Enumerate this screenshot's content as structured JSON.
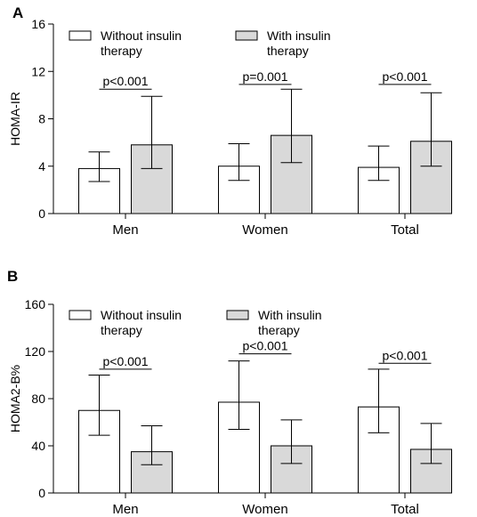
{
  "chart_data": [
    {
      "panel_label": "A",
      "type": "bar",
      "ylabel": "HOMA-IR",
      "ylim": [
        0,
        16
      ],
      "yticks": [
        0,
        4,
        8,
        12,
        16
      ],
      "categories": [
        "Men",
        "Women",
        "Total"
      ],
      "series": [
        {
          "name": "Without insulin therapy",
          "color": "#ffffff",
          "values": [
            3.8,
            4.0,
            3.9
          ],
          "err_low": [
            2.7,
            2.8,
            2.8
          ],
          "err_high": [
            5.2,
            5.9,
            5.7
          ]
        },
        {
          "name": "With insulin therapy",
          "color": "#d9d9d9",
          "values": [
            5.8,
            6.6,
            6.1
          ],
          "err_low": [
            3.8,
            4.3,
            4.0
          ],
          "err_high": [
            9.9,
            10.5,
            10.2
          ]
        }
      ],
      "annotations": [
        {
          "text": "p<0.001",
          "category": "Men",
          "level": 10.5
        },
        {
          "text": "p=0.001",
          "category": "Women",
          "level": 10.9
        },
        {
          "text": "p<0.001",
          "category": "Total",
          "level": 10.9
        }
      ],
      "legend_lines": [
        [
          "Without insulin",
          "therapy"
        ],
        [
          "With insulin",
          "therapy"
        ]
      ],
      "legend_position": "top-left"
    },
    {
      "panel_label": "B",
      "type": "bar",
      "ylabel": "HOMA2-B%",
      "ylim": [
        0,
        160
      ],
      "yticks": [
        0,
        40,
        80,
        120,
        160
      ],
      "categories": [
        "Men",
        "Women",
        "Total"
      ],
      "series": [
        {
          "name": "Without insulin therapy",
          "color": "#ffffff",
          "values": [
            70,
            77,
            73
          ],
          "err_low": [
            49,
            54,
            51
          ],
          "err_high": [
            100,
            112,
            105
          ]
        },
        {
          "name": "With insulin therapy",
          "color": "#d9d9d9",
          "values": [
            35,
            40,
            37
          ],
          "err_low": [
            24,
            25,
            25
          ],
          "err_high": [
            57,
            62,
            59
          ]
        }
      ],
      "annotations": [
        {
          "text": "p<0.001",
          "category": "Men",
          "level": 105
        },
        {
          "text": "p<0.001",
          "category": "Women",
          "level": 118
        },
        {
          "text": "p<0.001",
          "category": "Total",
          "level": 110
        }
      ],
      "legend_lines": [
        [
          "Without insulin",
          "therapy"
        ],
        [
          "With insulin",
          "therapy"
        ]
      ],
      "legend_position": "top-left"
    }
  ]
}
